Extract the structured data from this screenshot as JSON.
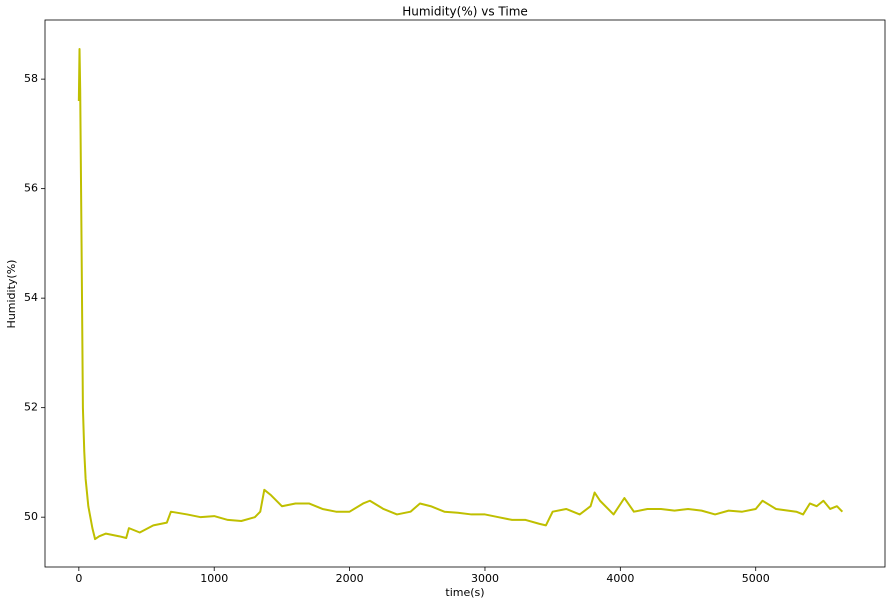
{
  "chart_data": {
    "type": "line",
    "title": "Humidity(%) vs Time",
    "x_label": "time(s)",
    "y_label": "Humidity(%)",
    "x": [
      0,
      5,
      10,
      20,
      30,
      40,
      50,
      70,
      100,
      120,
      150,
      200,
      300,
      350,
      370,
      450,
      550,
      650,
      680,
      800,
      900,
      1000,
      1100,
      1200,
      1300,
      1340,
      1370,
      1420,
      1500,
      1600,
      1700,
      1800,
      1900,
      2000,
      2100,
      2150,
      2250,
      2350,
      2450,
      2520,
      2600,
      2700,
      2800,
      2900,
      3000,
      3100,
      3200,
      3300,
      3400,
      3450,
      3500,
      3600,
      3700,
      3780,
      3810,
      3850,
      3950,
      4030,
      4100,
      4200,
      4300,
      4400,
      4500,
      4600,
      4700,
      4800,
      4900,
      5000,
      5050,
      5150,
      5300,
      5350,
      5400,
      5450,
      5500,
      5550,
      5600,
      5640
    ],
    "series": [
      {
        "name": "Humidity",
        "color": "#bfbf00",
        "values": [
          57.6,
          58.55,
          57.8,
          55,
          52,
          51.2,
          50.7,
          50.2,
          49.8,
          49.6,
          49.65,
          49.7,
          49.65,
          49.62,
          49.8,
          49.72,
          49.85,
          49.9,
          50.1,
          50.05,
          50.0,
          50.02,
          49.95,
          49.93,
          50.0,
          50.1,
          50.5,
          50.4,
          50.2,
          50.25,
          50.25,
          50.15,
          50.1,
          50.1,
          50.25,
          50.3,
          50.15,
          50.05,
          50.1,
          50.25,
          50.2,
          50.1,
          50.08,
          50.05,
          50.05,
          50.0,
          49.95,
          49.95,
          49.88,
          49.85,
          50.1,
          50.15,
          50.05,
          50.2,
          50.45,
          50.3,
          50.05,
          50.35,
          50.1,
          50.15,
          50.15,
          50.12,
          50.15,
          50.12,
          50.05,
          50.12,
          50.1,
          50.15,
          50.3,
          50.15,
          50.1,
          50.05,
          50.25,
          50.2,
          50.3,
          50.15,
          50.2,
          50.1
        ]
      }
    ],
    "xlim": [
      -250,
      5955
    ],
    "ylim": [
      49.09,
      59.08
    ],
    "xticks": [
      0,
      1000,
      2000,
      3000,
      4000,
      5000
    ],
    "yticks": [
      50,
      52,
      54,
      56,
      58
    ]
  }
}
